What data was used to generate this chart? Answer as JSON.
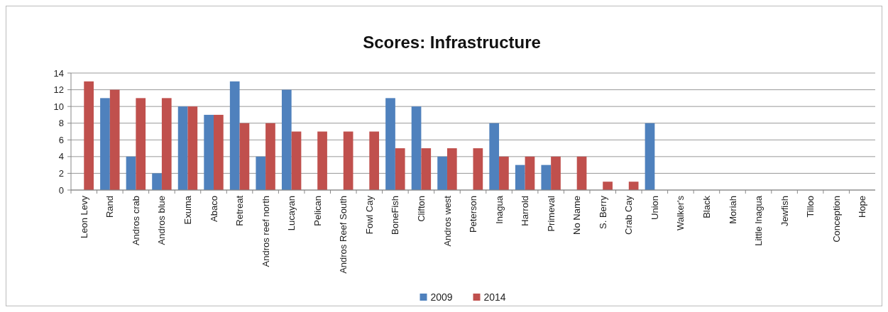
{
  "chart_data": {
    "type": "bar",
    "title": "Scores: Infrastructure",
    "categories": [
      "Leon Levy",
      "Rand",
      "Andros crab",
      "Andros blue",
      "Exuma",
      "Abaco",
      "Retreat",
      "Andros reef north",
      "Lucayan",
      "Pelican",
      "Andros Reef South",
      "Fowl Cay",
      "BoneFish",
      "Clifton",
      "Andros west",
      "Peterson",
      "Inagua",
      "Harrold",
      "Primeval",
      "No Name",
      "S. Berry",
      "Crab Cay",
      "Union",
      "Walker's",
      "Black",
      "Moriah",
      "Little Inagua",
      "Jewfish",
      "Tilloo",
      "Conception",
      "Hope"
    ],
    "series": [
      {
        "name": "2009",
        "color": "#4f81bd",
        "values": [
          0,
          11,
          4,
          2,
          10,
          9,
          13,
          4,
          12,
          0,
          0,
          0,
          11,
          10,
          4,
          0,
          8,
          3,
          3,
          0,
          0,
          0,
          8,
          0,
          0,
          0,
          0,
          0,
          0,
          0,
          0
        ]
      },
      {
        "name": "2014",
        "color": "#c0504d",
        "values": [
          13,
          12,
          11,
          11,
          10,
          9,
          8,
          8,
          7,
          7,
          7,
          7,
          5,
          5,
          5,
          5,
          4,
          4,
          4,
          4,
          1,
          1,
          0,
          0,
          0,
          0,
          0,
          0,
          0,
          0,
          0
        ]
      }
    ],
    "ylim": [
      0,
      14
    ],
    "yticks": [
      0,
      2,
      4,
      6,
      8,
      10,
      12,
      14
    ],
    "grid": "y",
    "legend": "bottom"
  }
}
